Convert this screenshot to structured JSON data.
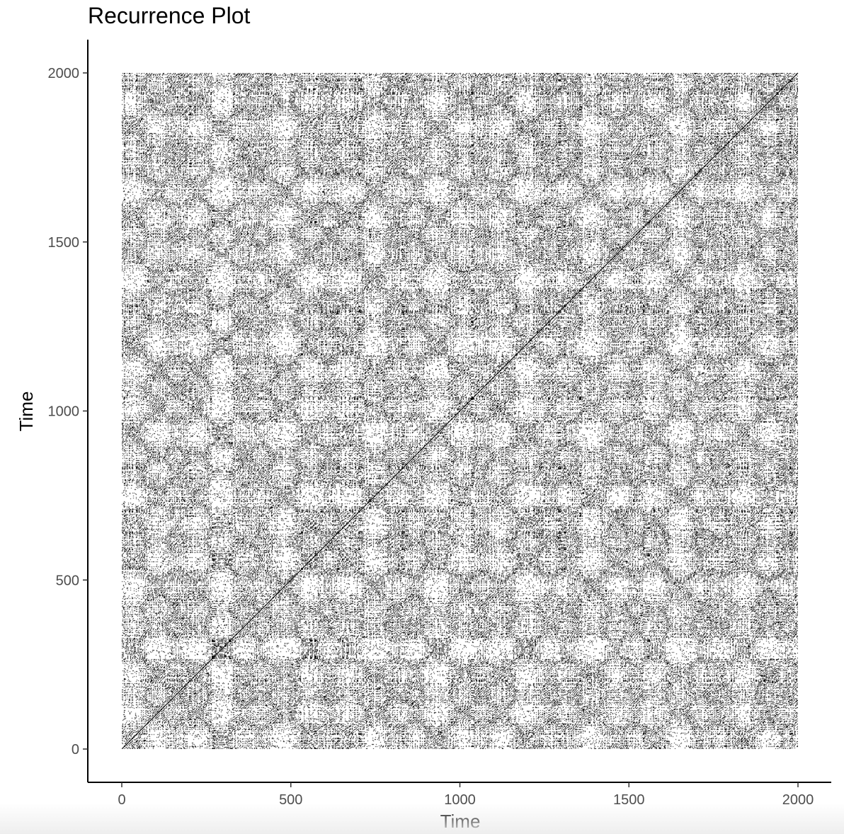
{
  "chart_data": {
    "type": "heatmap",
    "subtype": "recurrence-plot",
    "title": "Recurrence Plot",
    "xlabel": "Time",
    "ylabel": "Time",
    "xlim": [
      -100,
      2100
    ],
    "ylim": [
      -100,
      2100
    ],
    "data_range": [
      1,
      2000
    ],
    "x_ticks": [
      0,
      500,
      1000,
      1500,
      2000
    ],
    "y_ticks": [
      0,
      500,
      1000,
      1500,
      2000
    ],
    "x_tick_labels": [
      "0",
      "500",
      "1000",
      "1500",
      "2000"
    ],
    "y_tick_labels": [
      "0",
      "500",
      "1000",
      "1500",
      "2000"
    ],
    "recurrent_color": "#000000",
    "non_recurrent_color": "#ffffff",
    "main_diagonal": true,
    "grid": false,
    "legend": "none"
  },
  "colors": {
    "background": "#ffffff",
    "axis_line": "#000000",
    "tick_text": "#4d4d4d",
    "points": "#000000"
  }
}
